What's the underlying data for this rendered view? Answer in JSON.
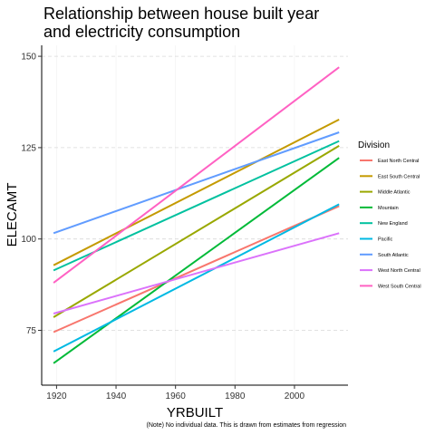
{
  "chart_data": {
    "type": "line",
    "title": "Relationship between house built year and electricity consumption",
    "title_lines": [
      "Relationship between house built year",
      "and electricity consumption"
    ],
    "xlabel": "YRBUILT",
    "ylabel": "ELECAMT",
    "caption": "(Note) No individual data. This is drawn from estimates from regression",
    "xlim": [
      1915,
      2018
    ],
    "ylim": [
      60,
      153
    ],
    "xticks": [
      1920,
      1940,
      1960,
      1980,
      2000
    ],
    "yticks": [
      75,
      100,
      125,
      150
    ],
    "grid": "horizontal-dashed",
    "legend_title": "Division",
    "legend_position": "right",
    "series": [
      {
        "name": "East North Central",
        "color": "#F8766D",
        "x": [
          1919,
          2015
        ],
        "y": [
          74.5,
          109.0
        ]
      },
      {
        "name": "East South Central",
        "color": "#C49A00",
        "x": [
          1919,
          2015
        ],
        "y": [
          92.8,
          132.7
        ]
      },
      {
        "name": "Middle Atlantic",
        "color": "#99A800",
        "x": [
          1919,
          2015
        ],
        "y": [
          78.6,
          125.5
        ]
      },
      {
        "name": "Mountain",
        "color": "#00BA38",
        "x": [
          1919,
          2015
        ],
        "y": [
          66.0,
          122.2
        ]
      },
      {
        "name": "New England",
        "color": "#00C19F",
        "x": [
          1919,
          2015
        ],
        "y": [
          91.4,
          126.8
        ]
      },
      {
        "name": "Pacific",
        "color": "#00B9E3",
        "x": [
          1919,
          2015
        ],
        "y": [
          69.2,
          109.5
        ]
      },
      {
        "name": "South Atlantic",
        "color": "#619CFF",
        "x": [
          1919,
          2015
        ],
        "y": [
          101.6,
          129.2
        ]
      },
      {
        "name": "West North Central",
        "color": "#DB72FB",
        "x": [
          1919,
          2015
        ],
        "y": [
          79.6,
          101.6
        ]
      },
      {
        "name": "West South Central",
        "color": "#FF61C3",
        "x": [
          1919,
          2015
        ],
        "y": [
          88.0,
          147.0
        ]
      }
    ]
  }
}
